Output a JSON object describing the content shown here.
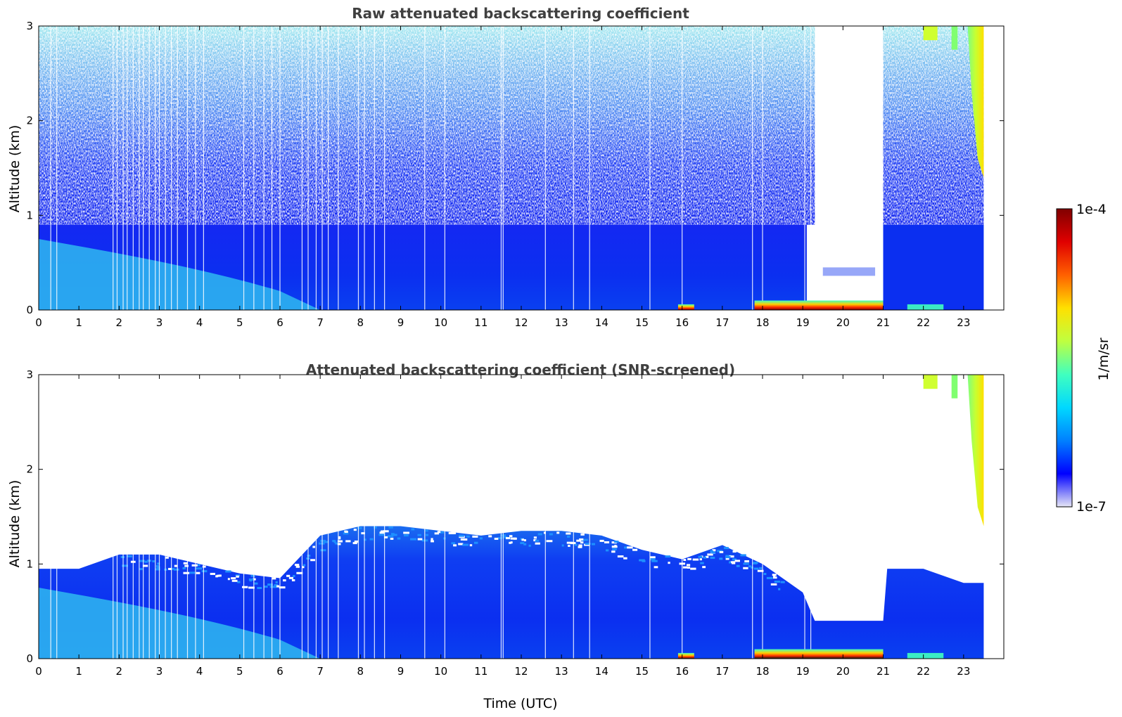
{
  "chart_data": [
    {
      "type": "heatmap",
      "title": "Raw attenuated backscattering coefficient",
      "xlabel": "",
      "ylabel": "Altitude (km)",
      "xlim": [
        0,
        24
      ],
      "ylim": [
        0,
        3
      ],
      "x_ticks": [
        "0",
        "1",
        "2",
        "3",
        "4",
        "5",
        "6",
        "7",
        "8",
        "9",
        "10",
        "11",
        "12",
        "13",
        "14",
        "15",
        "16",
        "17",
        "18",
        "19",
        "20",
        "21",
        "22",
        "23"
      ],
      "y_ticks": [
        "0",
        "1",
        "2",
        "3"
      ],
      "data_end_time": 23.5,
      "features": [
        {
          "label": "noisy background signal",
          "time_range": [
            0,
            23.5
          ],
          "altitude_range": [
            1,
            3
          ]
        },
        {
          "label": "boundary layer aerosol",
          "time_range": [
            0,
            19.1
          ],
          "altitude_range": [
            0,
            0.9
          ]
        },
        {
          "label": "cloud base",
          "time_range": [
            17.8,
            21.0
          ],
          "altitude_range": [
            0,
            0.1
          ]
        },
        {
          "label": "no signal gap",
          "time_range": [
            19.3,
            21.0
          ],
          "altitude_range": [
            0.25,
            3
          ]
        },
        {
          "label": "upper cloud",
          "time_range": [
            22.0,
            23.5
          ],
          "altitude_range": [
            1.4,
            3
          ]
        }
      ]
    },
    {
      "type": "heatmap",
      "title": "Attenuated backscattering coefficient (SNR-screened)",
      "xlabel": "Time (UTC)",
      "ylabel": "Altitude (km)",
      "xlim": [
        0,
        24
      ],
      "ylim": [
        0,
        3
      ],
      "x_ticks": [
        "0",
        "1",
        "2",
        "3",
        "4",
        "5",
        "6",
        "7",
        "8",
        "9",
        "10",
        "11",
        "12",
        "13",
        "14",
        "15",
        "16",
        "17",
        "18",
        "19",
        "20",
        "21",
        "22",
        "23"
      ],
      "y_ticks": [
        "0",
        "1",
        "2",
        "3"
      ],
      "data_end_time": 23.5,
      "boundary_layer_top_km": [
        [
          0,
          0.95
        ],
        [
          1,
          0.95
        ],
        [
          2,
          1.1
        ],
        [
          3,
          1.1
        ],
        [
          4,
          1.0
        ],
        [
          5,
          0.9
        ],
        [
          6,
          0.85
        ],
        [
          7,
          1.3
        ],
        [
          8,
          1.4
        ],
        [
          9,
          1.4
        ],
        [
          10,
          1.35
        ],
        [
          11,
          1.3
        ],
        [
          12,
          1.35
        ],
        [
          13,
          1.35
        ],
        [
          14,
          1.3
        ],
        [
          15,
          1.15
        ],
        [
          16,
          1.05
        ],
        [
          17,
          1.2
        ],
        [
          18,
          1.0
        ],
        [
          19,
          0.7
        ],
        [
          19.3,
          0.4
        ],
        [
          21.0,
          0.4
        ],
        [
          21.1,
          0.95
        ],
        [
          22,
          0.95
        ],
        [
          23,
          0.8
        ],
        [
          23.5,
          0.8
        ]
      ],
      "features": [
        {
          "label": "cloud base",
          "time_range": [
            17.8,
            21.0
          ],
          "altitude_range": [
            0,
            0.1
          ]
        },
        {
          "label": "upper cloud",
          "time_range": [
            22.0,
            23.5
          ],
          "altitude_range": [
            1.4,
            3
          ]
        }
      ]
    }
  ],
  "colorbar": {
    "label": "1/m/sr",
    "max_label": "1e-4",
    "min_label": "1e-7",
    "scale": "log",
    "range": [
      1e-07,
      0.0001
    ],
    "colormap": "jet",
    "colors": [
      "#e6e6f5",
      "#0000ff",
      "#0080ff",
      "#00d8ff",
      "#40ffbf",
      "#bfff40",
      "#ffe000",
      "#ff6000",
      "#e00000",
      "#800000"
    ]
  }
}
